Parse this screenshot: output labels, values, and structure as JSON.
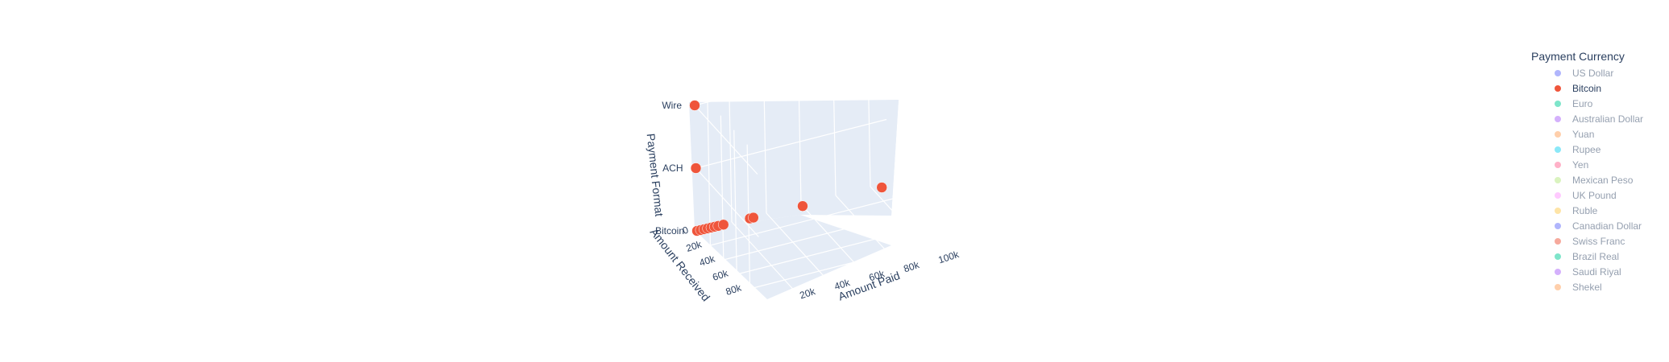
{
  "chart_data": {
    "type": "scatter3d",
    "legend_title": "Payment Currency",
    "legend": [
      {
        "name": "US Dollar",
        "color": "#636efa",
        "active": false
      },
      {
        "name": "Bitcoin",
        "color": "#ef553b",
        "active": true
      },
      {
        "name": "Euro",
        "color": "#00cc96",
        "active": false
      },
      {
        "name": "Australian Dollar",
        "color": "#ab63fa",
        "active": false
      },
      {
        "name": "Yuan",
        "color": "#ffa15a",
        "active": false
      },
      {
        "name": "Rupee",
        "color": "#19d3f3",
        "active": false
      },
      {
        "name": "Yen",
        "color": "#ff6692",
        "active": false
      },
      {
        "name": "Mexican Peso",
        "color": "#b6e880",
        "active": false
      },
      {
        "name": "UK Pound",
        "color": "#ff97ff",
        "active": false
      },
      {
        "name": "Ruble",
        "color": "#fecb52",
        "active": false
      },
      {
        "name": "Canadian Dollar",
        "color": "#636efa",
        "active": false
      },
      {
        "name": "Swiss Franc",
        "color": "#ef553b",
        "active": false
      },
      {
        "name": "Brazil Real",
        "color": "#00cc96",
        "active": false
      },
      {
        "name": "Saudi Riyal",
        "color": "#ab63fa",
        "active": false
      },
      {
        "name": "Shekel",
        "color": "#ffa15a",
        "active": false
      }
    ],
    "axes": {
      "x": {
        "label": "Amount Paid",
        "ticks": [
          "20k",
          "40k",
          "60k",
          "80k",
          "100k"
        ]
      },
      "y": {
        "label": "Amount Received",
        "ticks": [
          "0",
          "20k",
          "40k",
          "60k",
          "80k"
        ]
      },
      "z": {
        "label": "Payment Format",
        "categories": [
          "Bitcoin",
          "ACH",
          "Wire"
        ]
      }
    },
    "series": [
      {
        "name": "Bitcoin",
        "color": "#ef553b",
        "points": [
          {
            "x": 0,
            "y": 0,
            "z": "Wire"
          },
          {
            "x": 0,
            "y": 0,
            "z": "ACH"
          },
          {
            "x": 0,
            "y": 0,
            "z": "Bitcoin"
          },
          {
            "x": 2000,
            "y": 2000,
            "z": "Bitcoin"
          },
          {
            "x": 4000,
            "y": 4000,
            "z": "Bitcoin"
          },
          {
            "x": 6000,
            "y": 6000,
            "z": "Bitcoin"
          },
          {
            "x": 8000,
            "y": 8000,
            "z": "Bitcoin"
          },
          {
            "x": 10000,
            "y": 10000,
            "z": "Bitcoin"
          },
          {
            "x": 12000,
            "y": 12000,
            "z": "Bitcoin"
          },
          {
            "x": 15000,
            "y": 15000,
            "z": "Bitcoin"
          },
          {
            "x": 30000,
            "y": 30000,
            "z": "Bitcoin"
          },
          {
            "x": 32000,
            "y": 32000,
            "z": "Bitcoin"
          },
          {
            "x": 60000,
            "y": 60000,
            "z": "Bitcoin"
          },
          {
            "x": 105000,
            "y": 105000,
            "z": "Bitcoin"
          }
        ]
      }
    ]
  }
}
